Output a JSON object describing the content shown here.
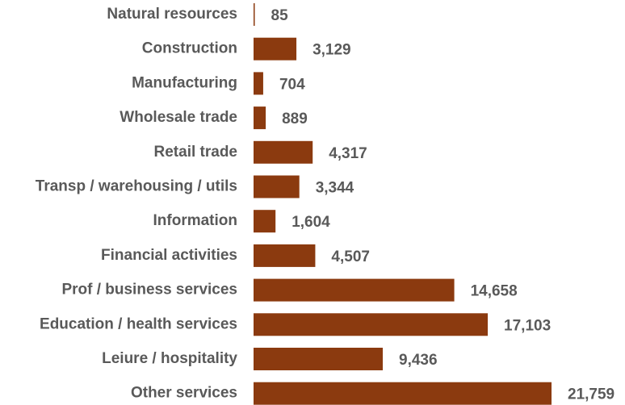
{
  "chart_data": {
    "type": "bar",
    "orientation": "horizontal",
    "categories": [
      "Natural resources",
      "Construction",
      "Manufacturing",
      "Wholesale trade",
      "Retail trade",
      "Transp / warehousing / utils",
      "Information",
      "Financial activities",
      "Prof / business services",
      "Education / health services",
      "Leiure / hospitality",
      "Other services"
    ],
    "values": [
      85,
      3129,
      704,
      889,
      4317,
      3344,
      1604,
      4507,
      14658,
      17103,
      9436,
      21759
    ],
    "value_labels": [
      "85",
      "3,129",
      "704",
      "889",
      "4,317",
      "3,344",
      "1,604",
      "4,507",
      "14,658",
      "17,103",
      "9,436",
      "21,759"
    ],
    "bar_color": "#8B3A0F",
    "label_color": "#595959",
    "grid": false,
    "legend": "none"
  }
}
